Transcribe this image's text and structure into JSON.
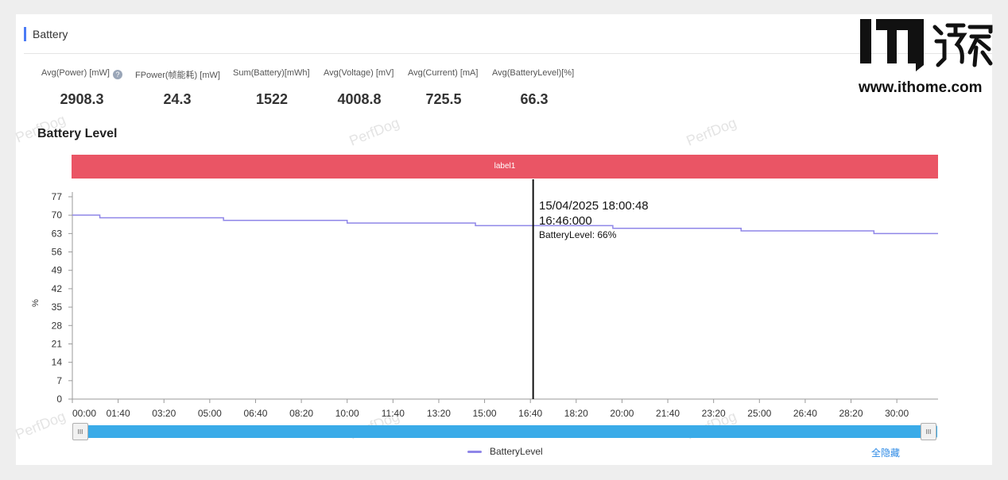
{
  "section": {
    "title": "Battery"
  },
  "stats": [
    {
      "label": "Avg(Power) [mW]",
      "value": "2908.3",
      "help": "?"
    },
    {
      "label": "FPower(帧能耗) [mW]",
      "value": "24.3"
    },
    {
      "label": "Sum(Battery)[mWh]",
      "value": "1522"
    },
    {
      "label": "Avg(Voltage) [mV]",
      "value": "4008.8"
    },
    {
      "label": "Avg(Current) [mA]",
      "value": "725.5"
    },
    {
      "label": "Avg(BatteryLevel)[%]",
      "value": "66.3"
    }
  ],
  "watermark": "PerfDog",
  "logo": {
    "site": "www.ithome.com"
  },
  "colors": {
    "accent": "#4b7bf5",
    "label_band": "#ea5565",
    "series": "#8f86e8",
    "slider": "#3aabe8",
    "link": "#2f8be6"
  },
  "chart_data": {
    "type": "line",
    "title": "Battery Level",
    "band_label": "label1",
    "ylabel": "%",
    "ylim": [
      0,
      77
    ],
    "yticks": [
      "0",
      "7",
      "14",
      "21",
      "28",
      "35",
      "42",
      "49",
      "56",
      "63",
      "70",
      "77"
    ],
    "xticks": [
      "00:00",
      "01:40",
      "03:20",
      "05:00",
      "06:40",
      "08:20",
      "10:00",
      "11:40",
      "13:20",
      "15:00",
      "16:40",
      "18:20",
      "20:00",
      "21:40",
      "23:20",
      "25:00",
      "26:40",
      "28:20",
      "30:00"
    ],
    "xlim_seconds": [
      0,
      1890
    ],
    "series": [
      {
        "name": "BatteryLevel",
        "steps": [
          {
            "x": "00:00",
            "y": 70
          },
          {
            "x": "01:00",
            "y": 69
          },
          {
            "x": "05:30",
            "y": 68
          },
          {
            "x": "10:00",
            "y": 67
          },
          {
            "x": "14:40",
            "y": 66
          },
          {
            "x": "19:40",
            "y": 65
          },
          {
            "x": "24:20",
            "y": 64
          },
          {
            "x": "29:10",
            "y": 63
          },
          {
            "x": "31:30",
            "y": 63
          }
        ]
      }
    ],
    "tooltip": {
      "x": "16:46",
      "line1": "15/04/2025 18:00:48",
      "line2": "16:46:000",
      "line3": "BatteryLevel: 66%"
    },
    "legend": {
      "position": "bottom-center",
      "hide_all": "全隐藏"
    }
  }
}
